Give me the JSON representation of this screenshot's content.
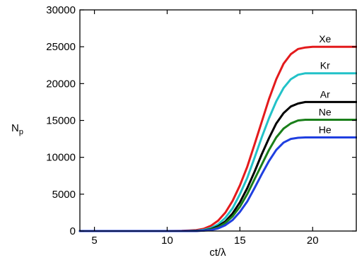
{
  "chart_data": {
    "type": "line",
    "title": "",
    "xlabel": "ct/λ",
    "ylabel_main": "N",
    "ylabel_sub": "p",
    "xlim": [
      4,
      23
    ],
    "ylim": [
      0,
      30000
    ],
    "x_ticks": [
      5,
      10,
      15,
      20
    ],
    "y_ticks": [
      0,
      5000,
      10000,
      15000,
      20000,
      25000,
      30000
    ],
    "grid": false,
    "legend": "inline labels at right end of each curve",
    "series": [
      {
        "name": "Xe",
        "color": "#e31a1c",
        "points": [
          [
            4,
            0
          ],
          [
            10,
            0
          ],
          [
            11,
            20
          ],
          [
            12,
            120
          ],
          [
            12.5,
            300
          ],
          [
            13,
            700
          ],
          [
            13.5,
            1400
          ],
          [
            14,
            2500
          ],
          [
            14.5,
            4100
          ],
          [
            15,
            6200
          ],
          [
            15.5,
            8700
          ],
          [
            16,
            11700
          ],
          [
            16.5,
            14800
          ],
          [
            17,
            17900
          ],
          [
            17.5,
            20600
          ],
          [
            18,
            22700
          ],
          [
            18.5,
            24000
          ],
          [
            19,
            24700
          ],
          [
            19.5,
            24900
          ],
          [
            20,
            25000
          ],
          [
            23,
            25000
          ]
        ]
      },
      {
        "name": "Kr",
        "color": "#22c2c8",
        "points": [
          [
            4,
            0
          ],
          [
            11,
            0
          ],
          [
            12,
            40
          ],
          [
            12.5,
            150
          ],
          [
            13,
            400
          ],
          [
            13.5,
            900
          ],
          [
            14,
            1800
          ],
          [
            14.5,
            3100
          ],
          [
            15,
            5000
          ],
          [
            15.5,
            7200
          ],
          [
            16,
            9900
          ],
          [
            16.5,
            12700
          ],
          [
            17,
            15300
          ],
          [
            17.5,
            17600
          ],
          [
            18,
            19400
          ],
          [
            18.5,
            20600
          ],
          [
            19,
            21200
          ],
          [
            19.5,
            21400
          ],
          [
            23,
            21400
          ]
        ]
      },
      {
        "name": "Ar",
        "color": "#000000",
        "points": [
          [
            4,
            0
          ],
          [
            11.5,
            0
          ],
          [
            12.5,
            80
          ],
          [
            13,
            250
          ],
          [
            13.5,
            650
          ],
          [
            14,
            1300
          ],
          [
            14.5,
            2400
          ],
          [
            15,
            3900
          ],
          [
            15.5,
            5800
          ],
          [
            16,
            8000
          ],
          [
            16.5,
            10400
          ],
          [
            17,
            12600
          ],
          [
            17.5,
            14600
          ],
          [
            18,
            16000
          ],
          [
            18.5,
            16900
          ],
          [
            19,
            17300
          ],
          [
            19.5,
            17500
          ],
          [
            23,
            17500
          ]
        ]
      },
      {
        "name": "Ne",
        "color": "#1a7f1a",
        "points": [
          [
            4,
            0
          ],
          [
            11.5,
            0
          ],
          [
            12.5,
            60
          ],
          [
            13,
            200
          ],
          [
            13.5,
            500
          ],
          [
            14,
            1100
          ],
          [
            14.5,
            2000
          ],
          [
            15,
            3300
          ],
          [
            15.5,
            5000
          ],
          [
            16,
            7000
          ],
          [
            16.5,
            9000
          ],
          [
            17,
            11000
          ],
          [
            17.5,
            12700
          ],
          [
            18,
            13900
          ],
          [
            18.5,
            14600
          ],
          [
            19,
            15000
          ],
          [
            19.5,
            15100
          ],
          [
            23,
            15100
          ]
        ]
      },
      {
        "name": "He",
        "color": "#1f3fe0",
        "points": [
          [
            4,
            0
          ],
          [
            12,
            0
          ],
          [
            13,
            120
          ],
          [
            13.5,
            350
          ],
          [
            14,
            800
          ],
          [
            14.5,
            1500
          ],
          [
            15,
            2600
          ],
          [
            15.5,
            4000
          ],
          [
            16,
            5800
          ],
          [
            16.5,
            7700
          ],
          [
            17,
            9500
          ],
          [
            17.5,
            11000
          ],
          [
            18,
            12000
          ],
          [
            18.5,
            12500
          ],
          [
            19,
            12650
          ],
          [
            19.5,
            12700
          ],
          [
            23,
            12700
          ]
        ]
      }
    ]
  }
}
